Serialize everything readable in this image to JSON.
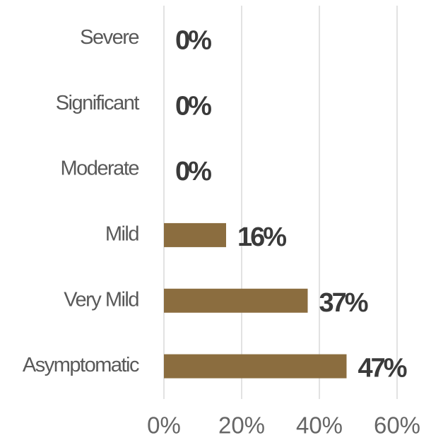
{
  "chart_data": {
    "type": "bar",
    "orientation": "horizontal",
    "categories": [
      "Severe",
      "Significant",
      "Moderate",
      "Mild",
      "Very Mild",
      "Asymptomatic"
    ],
    "values": [
      0,
      0,
      0,
      16,
      37,
      47
    ],
    "value_labels": [
      "0%",
      "0%",
      "0%",
      "16%",
      "37%",
      "47%"
    ],
    "color": "#8b6d3f",
    "xlim": [
      0,
      60
    ],
    "xticks": [
      {
        "value": 0,
        "label": "0%"
      },
      {
        "value": 20,
        "label": "20%"
      },
      {
        "value": 40,
        "label": "40%"
      },
      {
        "value": 60,
        "label": "60%"
      }
    ],
    "grid": true
  }
}
